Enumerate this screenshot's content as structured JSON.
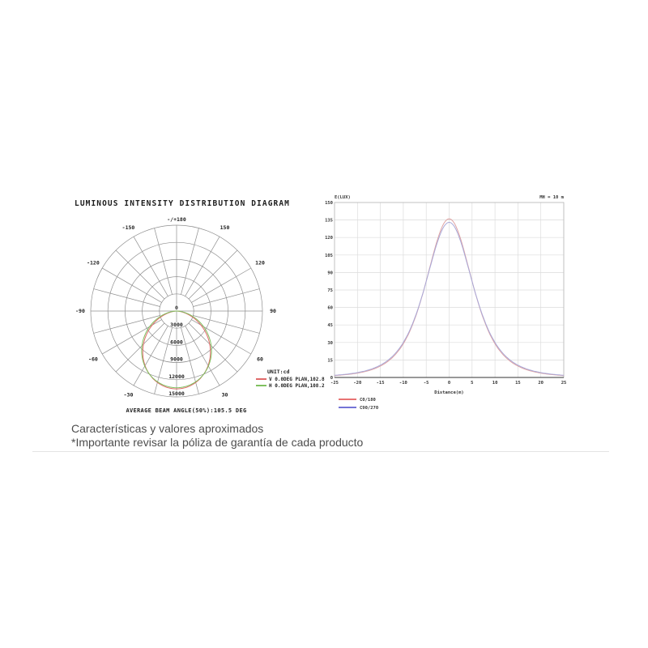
{
  "page": {
    "footer_line1": "Características y valores aproximados",
    "footer_line2": "*Importante revisar la póliza de garantía de cada producto"
  },
  "chart_data": [
    {
      "type": "polar",
      "title": "LUMINOUS INTENSITY DISTRIBUTION DIAGRAM",
      "unit_label": "UNIT:cd",
      "top_angle_label": "-/+180",
      "angle_labels_deg": [
        -150,
        -120,
        -90,
        -60,
        -30,
        30,
        60,
        90,
        120,
        150
      ],
      "radial_ticks_cd": [
        0,
        3000,
        6000,
        9000,
        12000,
        15000
      ],
      "radial_max_cd": 15000,
      "grid_color": "#8f8f8f",
      "caption": "AVERAGE BEAM ANGLE(50%):105.5 DEG",
      "series": [
        {
          "name": "V 0.0DEG PLAN,102.8",
          "color": "#e06a6a",
          "beam_angle_deg": 102.8,
          "peak_cd": 13600,
          "samples_deg": [
            -90,
            -75,
            -60,
            -45,
            -30,
            -15,
            0,
            15,
            30,
            45,
            60,
            75,
            90
          ],
          "samples_cd": [
            0,
            1860,
            4900,
            8160,
            10980,
            12920,
            13600,
            12920,
            10980,
            8160,
            4900,
            1860,
            0
          ]
        },
        {
          "name": "H 0.0DEG PLAN,108.2",
          "color": "#7fc05f",
          "beam_angle_deg": 108.2,
          "peak_cd": 13400,
          "samples_deg": [
            -90,
            -75,
            -60,
            -45,
            -30,
            -15,
            0,
            15,
            30,
            45,
            60,
            75,
            90
          ],
          "samples_cd": [
            0,
            2300,
            5440,
            8540,
            11120,
            12810,
            13400,
            12810,
            11120,
            8540,
            5440,
            2300,
            0
          ]
        }
      ]
    },
    {
      "type": "line",
      "corner_label": "E(LUX)",
      "height_label": "MH = 10 m",
      "xlabel": "Distance(m)",
      "x_ticks": [
        -25,
        -20,
        -15,
        -10,
        -5,
        0,
        5,
        10,
        15,
        20,
        25
      ],
      "y_ticks": [
        0,
        15,
        30,
        45,
        60,
        75,
        90,
        105,
        120,
        135,
        150
      ],
      "xlim": [
        -25,
        25
      ],
      "ylim": [
        0,
        150
      ],
      "grid": true,
      "series": [
        {
          "name": "C0/180",
          "curve_color": "#dfa3a3",
          "legend_color": "#e04545",
          "peak_lux": 136,
          "beam_angle_deg": 102.8,
          "samples_x_m": [
            -25,
            -20,
            -15,
            -10,
            -5,
            0,
            5,
            10,
            15,
            20,
            25
          ],
          "samples_lux": [
            1.6,
            3.7,
            9.8,
            28.8,
            82.5,
            136,
            82.5,
            28.8,
            9.8,
            3.7,
            1.6
          ]
        },
        {
          "name": "C90/270",
          "curve_color": "#a8a8d8",
          "legend_color": "#4646c8",
          "peak_lux": 133,
          "beam_angle_deg": 108.2,
          "samples_x_m": [
            -25,
            -20,
            -15,
            -10,
            -5,
            0,
            5,
            10,
            15,
            20,
            25
          ],
          "samples_lux": [
            1.9,
            4.2,
            10.6,
            30.0,
            82.3,
            133,
            82.3,
            30.0,
            10.6,
            4.2,
            1.9
          ]
        }
      ]
    }
  ]
}
